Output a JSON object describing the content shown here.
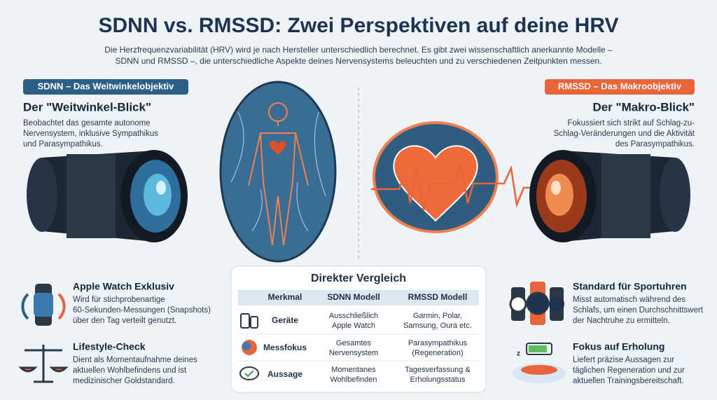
{
  "header": {
    "title": "SDNN vs. RMSSD: Zwei Perspektiven auf deine HRV",
    "intro": [
      "Die Herzfrequenzvariabilität (HRV) wird je nach Hersteller unterschiedlich berechnet. Es gibt zwei wissenschaftlich anerkannte Modelle –",
      "SDNN und RMSSD –, die unterschiedliche Aspekte deines Nervensystems beleuchten und zu verschiedenen Zeitpunkten messen."
    ]
  },
  "left": {
    "badge": "SDNN – Das Weitwinkelobjektiv",
    "heading": "Der \"Weitwinkel-Blick\"",
    "text": [
      "Beobachtet das gesamte autonome",
      "Nervensystem, inklusive Sympathikus",
      "und Parasympathikus."
    ],
    "items": [
      {
        "title": "Apple Watch Exklusiv",
        "text": [
          "Wird für stichprobenartige",
          "60-Sekunden-Messungen (Snapshots)",
          "über den Tag verteilt genutzt."
        ]
      },
      {
        "title": "Lifestyle-Check",
        "text": [
          "Dient als Momentaufnahme deines",
          "aktuellen Wohlbefindens und ist",
          "medizinischer Goldstandard."
        ]
      }
    ]
  },
  "right": {
    "badge": "RMSSD – Das Makroobjektiv",
    "heading": "Der \"Makro-Blick\"",
    "text": [
      "Fokussiert sich strikt auf Schlag-zu-",
      "Schlag-Veränderungen und die Aktivität",
      "des Parasympathikus."
    ],
    "items": [
      {
        "title": "Standard für Sportuhren",
        "text": [
          "Misst automatisch während des",
          "Schlafs, um einen Durchschnittswert",
          "der Nachtruhe zu ermitteln."
        ]
      },
      {
        "title": "Fokus auf Erholung",
        "text": [
          "Liefert präzise Aussagen zur",
          "täglichen Regeneration und zur",
          "aktuellen Trainingsbereitschaft."
        ]
      }
    ]
  },
  "table": {
    "title": "Direkter Vergleich",
    "header": [
      "Merkmal",
      "SDNN Modell",
      "RMSSD Modell"
    ],
    "rows": [
      [
        "Geräte",
        [
          "Ausschließlich",
          "Apple Watch"
        ],
        [
          "Garmin, Polar,",
          "Samsung, Oura etc."
        ]
      ],
      [
        "Messfokus",
        [
          "Gesamtes",
          "Nervensystem"
        ],
        [
          "Parasympathikus",
          "(Regeneration)"
        ]
      ],
      [
        "Aussage",
        [
          "Momentanes",
          "Wohlbefinden"
        ],
        [
          "Tagesverfassung &",
          "Erholungsstatus"
        ]
      ]
    ]
  }
}
